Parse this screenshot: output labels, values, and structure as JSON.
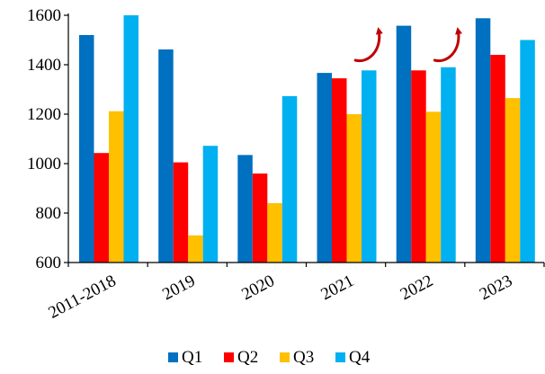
{
  "chart_data": {
    "type": "bar",
    "categories": [
      "2011-2018",
      "2019",
      "2020",
      "2021",
      "2022",
      "2023"
    ],
    "series": [
      {
        "name": "Q1",
        "color": "#0070C0",
        "values": [
          1520,
          1462,
          1035,
          1367,
          1558,
          1588
        ]
      },
      {
        "name": "Q2",
        "color": "#FF0000",
        "values": [
          1043,
          1005,
          960,
          1345,
          1377,
          1440
        ]
      },
      {
        "name": "Q3",
        "color": "#FFC000",
        "values": [
          1212,
          710,
          840,
          1200,
          1210,
          1265
        ]
      },
      {
        "name": "Q4",
        "color": "#00B0F0",
        "values": [
          1600,
          1072,
          1273,
          1377,
          1390,
          1500
        ]
      }
    ],
    "ylim": [
      600,
      1600
    ],
    "yticks": [
      600,
      800,
      1000,
      1200,
      1400,
      1600
    ],
    "grid": false,
    "legend_position": "bottom",
    "annotations": [
      {
        "type": "curved-arrow",
        "category": "2021",
        "color": "#C00000"
      },
      {
        "type": "curved-arrow",
        "category": "2022",
        "color": "#C00000"
      }
    ]
  }
}
